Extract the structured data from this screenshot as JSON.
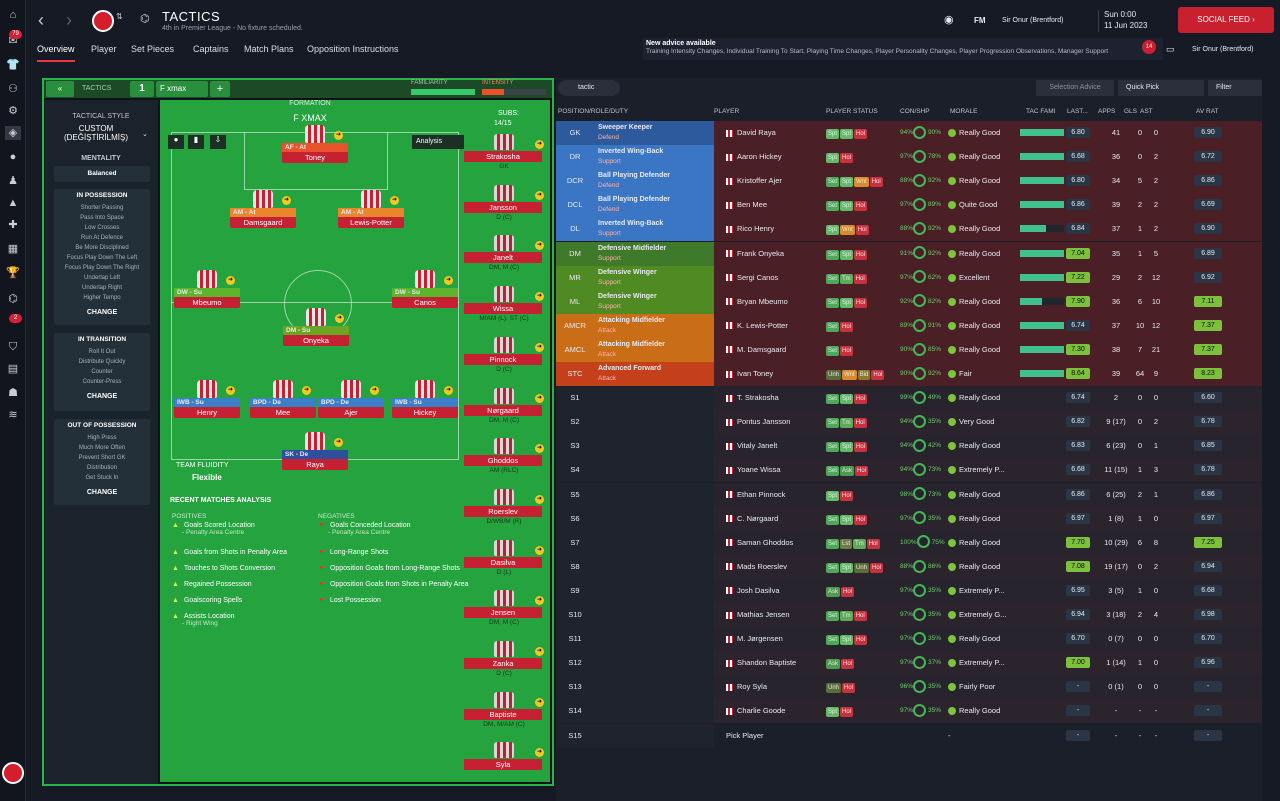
{
  "sidebar": {
    "badges": [
      "79",
      "2"
    ]
  },
  "header": {
    "title": "TACTICS",
    "subtitle": "4th in Premier League - No fixture scheduled.",
    "manager_user": "Sir Onur (Brentford)",
    "date_line1": "Sun 0:00",
    "date_line2": "11 Jun 2023",
    "social_feed": "SOCIAL FEED",
    "fm_label": "FM",
    "manager_right": "Sir Onur (Brentford)",
    "inbox_count": "14"
  },
  "subnav": [
    "Overview",
    "Player",
    "Set Pieces",
    "Captains",
    "Match Plans",
    "Opposition Instructions"
  ],
  "advice": {
    "title": "New advice available",
    "body": "Training Intensity Changes, Individual Training To Start, Playing Time Changes, Player Personality Changes, Player Progression Observations, Manager Support"
  },
  "tacbar": {
    "tactics_label": "TACTICS",
    "slot": "1",
    "name": "F xmax",
    "familiarity": "FAMILIARITY",
    "intensity": "INTENSITY"
  },
  "style": {
    "label": "TACTICAL STYLE",
    "value": "CUSTOM (DEĞİŞTİRİLMİŞ)",
    "mentality_label": "MENTALITY",
    "mentality": "Balanced",
    "in_possession": {
      "title": "IN POSSESSION",
      "items": [
        "Shorter Passing",
        "Pass Into Space",
        "Low Crosses",
        "Run At Defence",
        "Be More Disciplined",
        "Focus Play Down The Left",
        "Focus Play Down The Right",
        "Underlap Left",
        "Underlap Right",
        "Higher Tempo"
      ]
    },
    "in_transition": {
      "title": "IN TRANSITION",
      "items": [
        "Roll It Out",
        "Distribute Quickly",
        "Counter",
        "Counter-Press"
      ]
    },
    "out_of_possession": {
      "title": "OUT OF POSSESSION",
      "items": [
        "High Press",
        "Much More Often",
        "Prevent Short GK",
        "Distribution",
        "Get Stuck In"
      ]
    },
    "change": "CHANGE"
  },
  "formation": {
    "label": "FORMATION",
    "name": "F XMAX",
    "analysis": "Analysis",
    "subs_label": "SUBS:",
    "subs_count": "14/15",
    "fluidity_label": "TEAM FLUIDITY",
    "fluidity": "Flexible",
    "players": [
      {
        "role": "AF - At",
        "name": "Toney",
        "color": "#e9522b"
      },
      {
        "role": "AM - At",
        "name": "Damsgaard",
        "color": "#e9852b"
      },
      {
        "role": "AM - At",
        "name": "Lewis-Potter",
        "color": "#e9852b"
      },
      {
        "role": "DW - Su",
        "name": "Mbeumo",
        "color": "#5cb52c"
      },
      {
        "role": "DW - Su",
        "name": "Canos",
        "color": "#5cb52c"
      },
      {
        "role": "DM - Su",
        "name": "Onyeka",
        "color": "#6aa524"
      },
      {
        "role": "IWB - Su",
        "name": "Henry",
        "color": "#3c7fc9"
      },
      {
        "role": "BPD - De",
        "name": "Mee",
        "color": "#3c7fc9"
      },
      {
        "role": "BPD - De",
        "name": "Ajer",
        "color": "#3c7fc9"
      },
      {
        "role": "IWB - Su",
        "name": "Hickey",
        "color": "#3c7fc9"
      },
      {
        "role": "SK - De",
        "name": "Raya",
        "color": "#2e4f9e"
      }
    ],
    "subs": [
      {
        "name": "Strakosha",
        "pos": "GK"
      },
      {
        "name": "Jansson",
        "pos": "D (C)"
      },
      {
        "name": "Janelt",
        "pos": "DM, M (C)"
      },
      {
        "name": "Wissa",
        "pos": "M/AM (L), ST (C)"
      },
      {
        "name": "Pinnock",
        "pos": "D (C)"
      },
      {
        "name": "Nørgaard",
        "pos": "DM, M (C)"
      },
      {
        "name": "Ghoddos",
        "pos": "AM (RLC)"
      },
      {
        "name": "Roerslev",
        "pos": "D/WB/M (R)"
      },
      {
        "name": "Dasilva",
        "pos": "D (L)"
      },
      {
        "name": "Jensen",
        "pos": "DM, M (C)"
      },
      {
        "name": "Zanka",
        "pos": "D (C)"
      },
      {
        "name": "Baptiste",
        "pos": "DM, M/AM (C)"
      },
      {
        "name": "Syla",
        "pos": ""
      }
    ]
  },
  "analysis": {
    "title": "RECENT MATCHES ANALYSIS",
    "positives_label": "POSITIVES",
    "negatives_label": "NEGATIVES",
    "positives": [
      [
        "Goals Scored Location",
        "- Penalty Area Centre"
      ],
      [
        "Goals from Shots in Penalty Area",
        ""
      ],
      [
        "Touches to Shots Conversion",
        ""
      ],
      [
        "Regained Possession",
        ""
      ],
      [
        "Goalscoring Spells",
        ""
      ],
      [
        "Assists Location",
        "- Right Wing"
      ]
    ],
    "negatives": [
      [
        "Goals Conceded Location",
        "- Penalty Area Centre"
      ],
      [
        "Long-Range Shots",
        ""
      ],
      [
        "Opposition Goals from Long-Range Shots",
        ""
      ],
      [
        "Opposition Goals from Shots in Penalty Area",
        ""
      ],
      [
        "Lost Possession",
        ""
      ]
    ]
  },
  "table": {
    "tactic_dd": "tactic",
    "selection_advice": "Selection Advice",
    "quick_pick": "Quick Pick",
    "filter": "Filter",
    "headers": [
      "POSITION/ROLE/DUTY",
      "PLAYER",
      "PLAYER STATUS",
      "CON/SHP",
      "MORALE",
      "TAC FAMI",
      "LAST...",
      "APPS",
      "GLS",
      "AST",
      "AV RAT"
    ],
    "rows": [
      {
        "pos": "GK",
        "role": "Sweeper Keeper",
        "duty": "Defend",
        "player": "David Raya",
        "status": [
          "Spt",
          "Spt",
          "Hol"
        ],
        "con": "94%",
        "shp": "90%",
        "morale": "Really Good",
        "last": "6.80",
        "apps": "41",
        "gls": "0",
        "ast": "0",
        "av": "6.90",
        "fam": 1.0,
        "rc": "#2d5a9c"
      },
      {
        "pos": "DR",
        "role": "Inverted Wing-Back",
        "duty": "Support",
        "player": "Aaron Hickey",
        "status": [
          "Spt",
          "Hol"
        ],
        "con": "97%",
        "shp": "78%",
        "morale": "Really Good",
        "last": "6.68",
        "apps": "36",
        "gls": "0",
        "ast": "2",
        "av": "6.72",
        "fam": 1.0,
        "rc": "#3b76c4"
      },
      {
        "pos": "DCR",
        "role": "Ball Playing Defender",
        "duty": "Defend",
        "player": "Kristoffer Ajer",
        "status": [
          "Set",
          "Spt",
          "Wnt",
          "Hol"
        ],
        "con": "88%",
        "shp": "92%",
        "morale": "Really Good",
        "last": "6.80",
        "apps": "34",
        "gls": "5",
        "ast": "2",
        "av": "6.86",
        "fam": 1.0,
        "rc": "#3b76c4"
      },
      {
        "pos": "DCL",
        "role": "Ball Playing Defender",
        "duty": "Defend",
        "player": "Ben Mee",
        "status": [
          "Set",
          "Spt",
          "Hol"
        ],
        "con": "97%",
        "shp": "89%",
        "morale": "Quite Good",
        "last": "6.86",
        "apps": "39",
        "gls": "2",
        "ast": "2",
        "av": "6.69",
        "fam": 1.0,
        "rc": "#3b76c4"
      },
      {
        "pos": "DL",
        "role": "Inverted Wing-Back",
        "duty": "Support",
        "player": "Rico Henry",
        "status": [
          "Spt",
          "Wnt",
          "Hol"
        ],
        "con": "88%",
        "shp": "92%",
        "morale": "Really Good",
        "last": "6.84",
        "apps": "37",
        "gls": "1",
        "ast": "2",
        "av": "6.90",
        "fam": 0.6,
        "rc": "#3b76c4"
      },
      {
        "pos": "DM",
        "role": "Defensive Midfielder",
        "duty": "Support",
        "player": "Frank Onyeka",
        "status": [
          "Set",
          "Spt",
          "Hol"
        ],
        "con": "91%",
        "shp": "92%",
        "morale": "Really Good",
        "last": "7.04",
        "apps": "35",
        "gls": "1",
        "ast": "5",
        "av": "6.89",
        "fam": 1.0,
        "rc": "#3e7a2a"
      },
      {
        "pos": "MR",
        "role": "Defensive Winger",
        "duty": "Support",
        "player": "Sergi Canos",
        "status": [
          "Set",
          "Tm",
          "Hol"
        ],
        "con": "97%",
        "shp": "62%",
        "morale": "Excellent",
        "last": "7.22",
        "apps": "29",
        "gls": "2",
        "ast": "12",
        "av": "6.92",
        "fam": 1.0,
        "rc": "#4f8a22"
      },
      {
        "pos": "ML",
        "role": "Defensive Winger",
        "duty": "Support",
        "player": "Bryan Mbeumo",
        "status": [
          "Set",
          "Spt",
          "Hol"
        ],
        "con": "92%",
        "shp": "82%",
        "morale": "Really Good",
        "last": "7.90",
        "apps": "36",
        "gls": "6",
        "ast": "10",
        "av": "7.11",
        "fam": 0.5,
        "rc": "#4f8a22"
      },
      {
        "pos": "AMCR",
        "role": "Attacking Midfielder",
        "duty": "Attack",
        "player": "K. Lewis-Potter",
        "status": [
          "Set",
          "Hol"
        ],
        "con": "89%",
        "shp": "91%",
        "morale": "Really Good",
        "last": "6.74",
        "apps": "37",
        "gls": "10",
        "ast": "12",
        "av": "7.37",
        "fam": 1.0,
        "rc": "#c96d16"
      },
      {
        "pos": "AMCL",
        "role": "Attacking Midfielder",
        "duty": "Attack",
        "player": "M. Damsgaard",
        "status": [
          "Set",
          "Hol"
        ],
        "con": "90%",
        "shp": "85%",
        "morale": "Really Good",
        "last": "7.30",
        "apps": "38",
        "gls": "7",
        "ast": "21",
        "av": "7.37",
        "fam": 1.0,
        "rc": "#c96d16"
      },
      {
        "pos": "STC",
        "role": "Advanced Forward",
        "duty": "Attack",
        "player": "Ivan Toney",
        "status": [
          "Unh",
          "Wnt",
          "Bid",
          "Hol"
        ],
        "con": "90%",
        "shp": "92%",
        "morale": "Fair",
        "last": "8.64",
        "apps": "39",
        "gls": "64",
        "ast": "9",
        "av": "8.23",
        "fam": 1.0,
        "rc": "#c4401a"
      },
      {
        "pos": "S1",
        "player": "T. Strakosha",
        "status": [
          "Set",
          "Spt",
          "Hol"
        ],
        "con": "99%",
        "shp": "49%",
        "morale": "Really Good",
        "last": "6.74",
        "apps": "2",
        "gls": "0",
        "ast": "0",
        "av": "6.60"
      },
      {
        "pos": "S2",
        "player": "Pontus Jansson",
        "status": [
          "Set",
          "Tm",
          "Hol"
        ],
        "con": "94%",
        "shp": "35%",
        "morale": "Very Good",
        "last": "6.82",
        "apps": "9 (17)",
        "gls": "0",
        "ast": "2",
        "av": "6.78"
      },
      {
        "pos": "S3",
        "player": "Vitaly Janelt",
        "status": [
          "Set",
          "Spt",
          "Hol"
        ],
        "con": "94%",
        "shp": "42%",
        "morale": "Really Good",
        "last": "6.83",
        "apps": "6 (23)",
        "gls": "0",
        "ast": "1",
        "av": "6.85"
      },
      {
        "pos": "S4",
        "player": "Yoane Wissa",
        "status": [
          "Set",
          "Ask",
          "Hol"
        ],
        "con": "94%",
        "shp": "73%",
        "morale": "Extremely P...",
        "last": "6.68",
        "apps": "11 (15)",
        "gls": "1",
        "ast": "3",
        "av": "6.78"
      },
      {
        "pos": "S5",
        "player": "Ethan Pinnock",
        "status": [
          "Spt",
          "Hol"
        ],
        "con": "98%",
        "shp": "73%",
        "morale": "Really Good",
        "last": "6.86",
        "apps": "6 (25)",
        "gls": "2",
        "ast": "1",
        "av": "6.86"
      },
      {
        "pos": "S6",
        "player": "C. Nørgaard",
        "status": [
          "Set",
          "Spt",
          "Hol"
        ],
        "con": "97%",
        "shp": "35%",
        "morale": "Really Good",
        "last": "6.97",
        "apps": "1 (8)",
        "gls": "1",
        "ast": "0",
        "av": "6.97"
      },
      {
        "pos": "S7",
        "player": "Saman Ghoddos",
        "status": [
          "Set",
          "Lst",
          "Tm",
          "Hol"
        ],
        "con": "100%",
        "shp": "75%",
        "morale": "Really Good",
        "last": "7.70",
        "apps": "10 (29)",
        "gls": "6",
        "ast": "8",
        "av": "7.25"
      },
      {
        "pos": "S8",
        "player": "Mads Roerslev",
        "status": [
          "Set",
          "Spt",
          "Unh",
          "Hol"
        ],
        "con": "88%",
        "shp": "86%",
        "morale": "Really Good",
        "last": "7.08",
        "apps": "19 (17)",
        "gls": "0",
        "ast": "2",
        "av": "6.94"
      },
      {
        "pos": "S9",
        "player": "Josh Dasilva",
        "status": [
          "Ask",
          "Hol"
        ],
        "con": "97%",
        "shp": "35%",
        "morale": "Extremely P...",
        "last": "6.95",
        "apps": "3 (5)",
        "gls": "1",
        "ast": "0",
        "av": "6.68"
      },
      {
        "pos": "S10",
        "player": "Mathias Jensen",
        "status": [
          "Set",
          "Tm",
          "Hol"
        ],
        "con": "97%",
        "shp": "35%",
        "morale": "Extremely G...",
        "last": "6.94",
        "apps": "3 (18)",
        "gls": "2",
        "ast": "4",
        "av": "6.98"
      },
      {
        "pos": "S11",
        "player": "M. Jørgensen",
        "status": [
          "Set",
          "Spt",
          "Hol"
        ],
        "con": "97%",
        "shp": "35%",
        "morale": "Really Good",
        "last": "6.70",
        "apps": "0 (7)",
        "gls": "0",
        "ast": "0",
        "av": "6.70"
      },
      {
        "pos": "S12",
        "player": "Shandon Baptiste",
        "status": [
          "Ask",
          "Hol"
        ],
        "con": "97%",
        "shp": "37%",
        "morale": "Extremely P...",
        "last": "7.00",
        "apps": "1 (14)",
        "gls": "1",
        "ast": "0",
        "av": "6.96"
      },
      {
        "pos": "S13",
        "player": "Roy Syla",
        "status": [
          "Unh",
          "Hol"
        ],
        "con": "96%",
        "shp": "35%",
        "morale": "Fairly Poor",
        "last": "-",
        "apps": "0 (1)",
        "gls": "0",
        "ast": "0",
        "av": "-"
      },
      {
        "pos": "S14",
        "player": "Charlie Goode",
        "status": [
          "Spt",
          "Hol"
        ],
        "con": "97%",
        "shp": "35%",
        "morale": "Really Good",
        "last": "-",
        "apps": "-",
        "gls": "-",
        "ast": "-",
        "av": "-"
      },
      {
        "pos": "S15",
        "player": "Pick Player",
        "status": [],
        "con": "",
        "shp": "",
        "morale": "-",
        "last": "-",
        "apps": "-",
        "gls": "-",
        "ast": "-",
        "av": "-"
      }
    ]
  }
}
